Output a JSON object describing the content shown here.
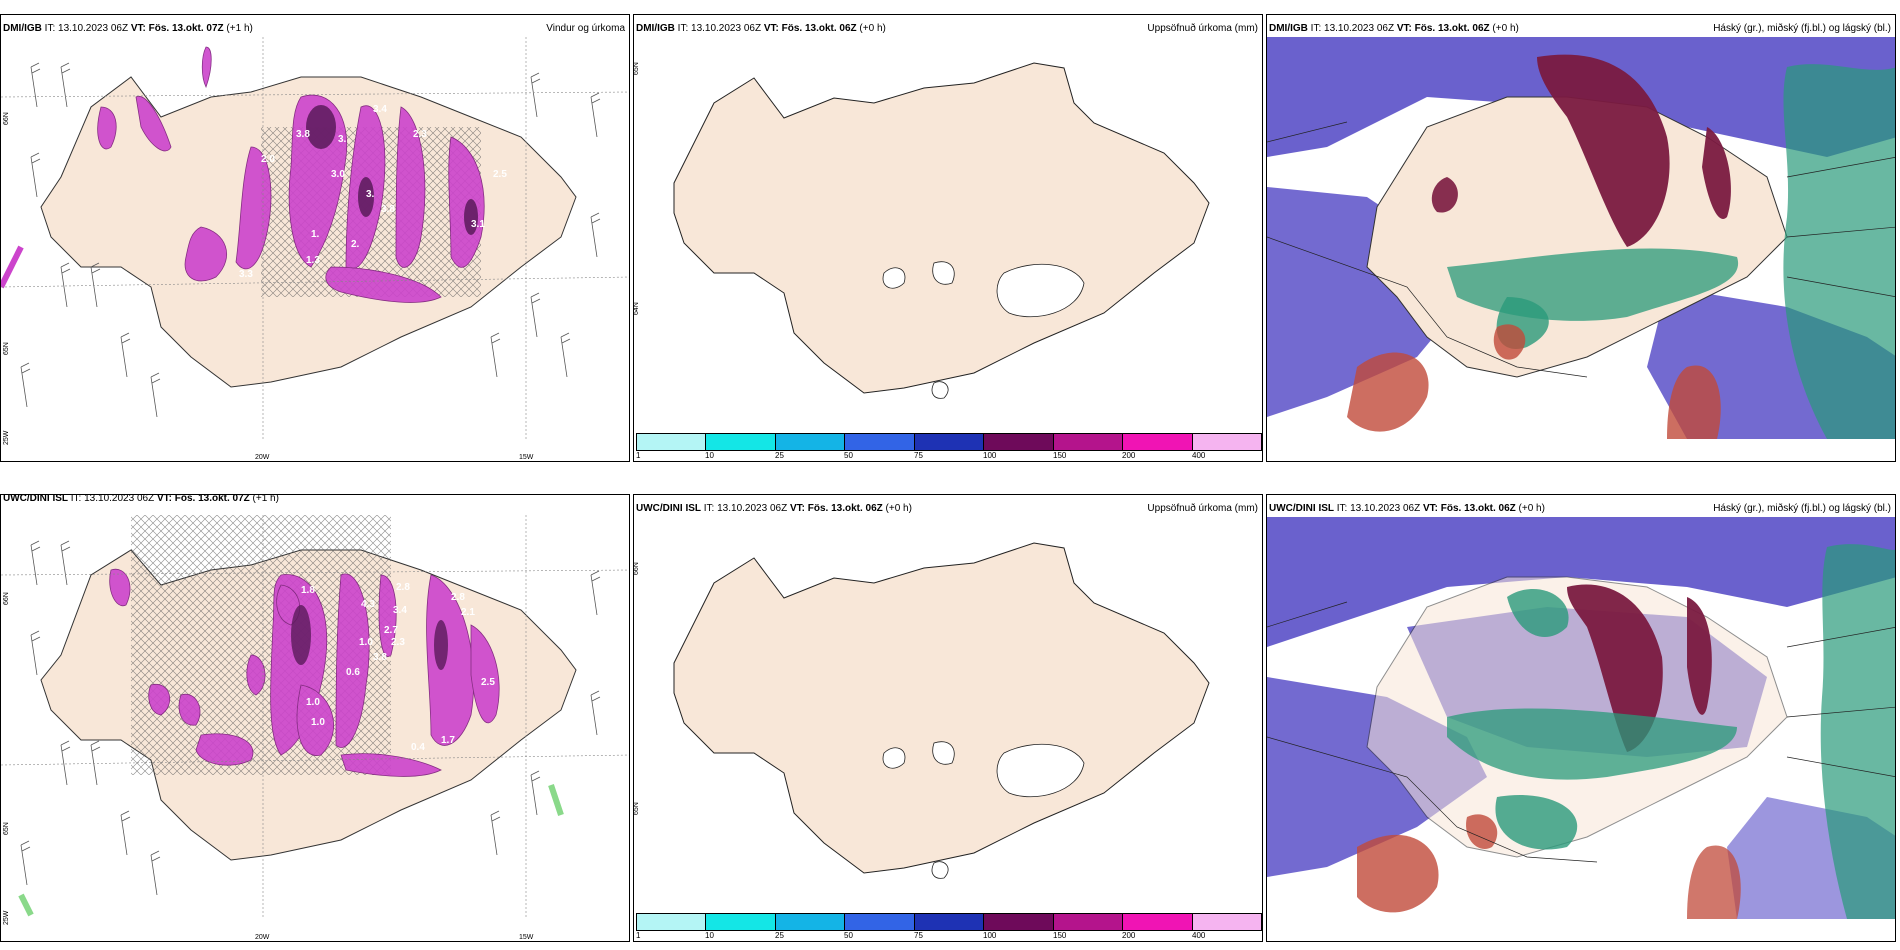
{
  "panels": [
    {
      "source": "DMI/IGB",
      "it_text": " IT: 13.10.2023 06Z ",
      "vt_label": "VT: Fös. 13.okt. 07Z",
      "lead": " (+1 h)",
      "right_title": "Vindur og úrkoma",
      "map_type": "wind-precip",
      "labels": [
        "3.8",
        "2.0",
        "3.",
        "3.4",
        "2.3",
        "3.0",
        "3.",
        "3.8",
        "2.5",
        "3.1",
        "1.",
        "2.",
        "1.3",
        "3.3"
      ],
      "bottom_ticks": [
        "20W",
        "15W"
      ],
      "side_ticks": [
        "66N",
        "65N",
        "25W"
      ]
    },
    {
      "source": "DMI/IGB",
      "it_text": " IT: 13.10.2023 06Z ",
      "vt_label": "VT: Fös. 13.okt. 06Z",
      "lead": " (+0 h)",
      "right_title": "Uppsöfnuð úrkoma (mm)",
      "map_type": "accumulated",
      "side_ticks": [
        "65N",
        "64N"
      ]
    },
    {
      "source": "DMI/IGB",
      "it_text": " IT: 13.10.2023 06Z ",
      "vt_label": "VT: Fös. 13.okt. 06Z",
      "lead": " (+0 h)",
      "right_title": "Háský (gr.), miðský (fj.bl.) og lágský (bl.)",
      "map_type": "clouds"
    },
    {
      "source": "UWC/DINI ISL",
      "it_text": " IT: 13.10.2023 06Z ",
      "vt_label": "VT: Fös. 13.okt. 07Z",
      "lead": " (+1 h)",
      "right_title": "",
      "map_type": "wind-precip",
      "labels": [
        "1.8",
        "2.8",
        "4.3",
        "3.4",
        "2.1",
        "2.8",
        "2.7",
        "1.0",
        "2.3",
        "3.8",
        "0.6",
        "1.0",
        "1.7",
        "2.5",
        "0.4",
        "1.0"
      ],
      "bottom_ticks": [
        "20W",
        "15W"
      ],
      "side_ticks": [
        "66N",
        "65N",
        "25W"
      ]
    },
    {
      "source": "UWC/DINI ISL",
      "it_text": " IT: 13.10.2023 06Z ",
      "vt_label": "VT: Fös. 13.okt. 06Z",
      "lead": " (+0 h)",
      "right_title": "Uppsöfnuð úrkoma (mm)",
      "map_type": "accumulated",
      "side_ticks": [
        "66N",
        "65N"
      ]
    },
    {
      "source": "UWC/DINI ISL",
      "it_text": " IT: 13.10.2023 06Z ",
      "vt_label": "VT: Fös. 13.okt. 06Z",
      "lead": " (+0 h)",
      "right_title": "Háský (gr.), miðský (fj.bl.) og lágský (bl.)",
      "map_type": "clouds"
    }
  ],
  "colorbar": {
    "ticks": [
      "1",
      "10",
      "25",
      "50",
      "75",
      "100",
      "150",
      "200",
      "400"
    ],
    "colors": [
      "#b4f5f5",
      "#14e6e6",
      "#14b4e6",
      "#3264e6",
      "#1e32b4",
      "#6e0a5a",
      "#b4148c",
      "#f014b4",
      "#f5b4f0"
    ]
  },
  "colors": {
    "land": "#f8e7d8",
    "precip": "#cc44cc",
    "precip_dark": "#5a1a5a",
    "high_cloud": "#7a1a40",
    "mid_cloud": "#2a9a7a",
    "low_cloud": "#5a50c8",
    "low_precip_red": "#c04a3a"
  }
}
